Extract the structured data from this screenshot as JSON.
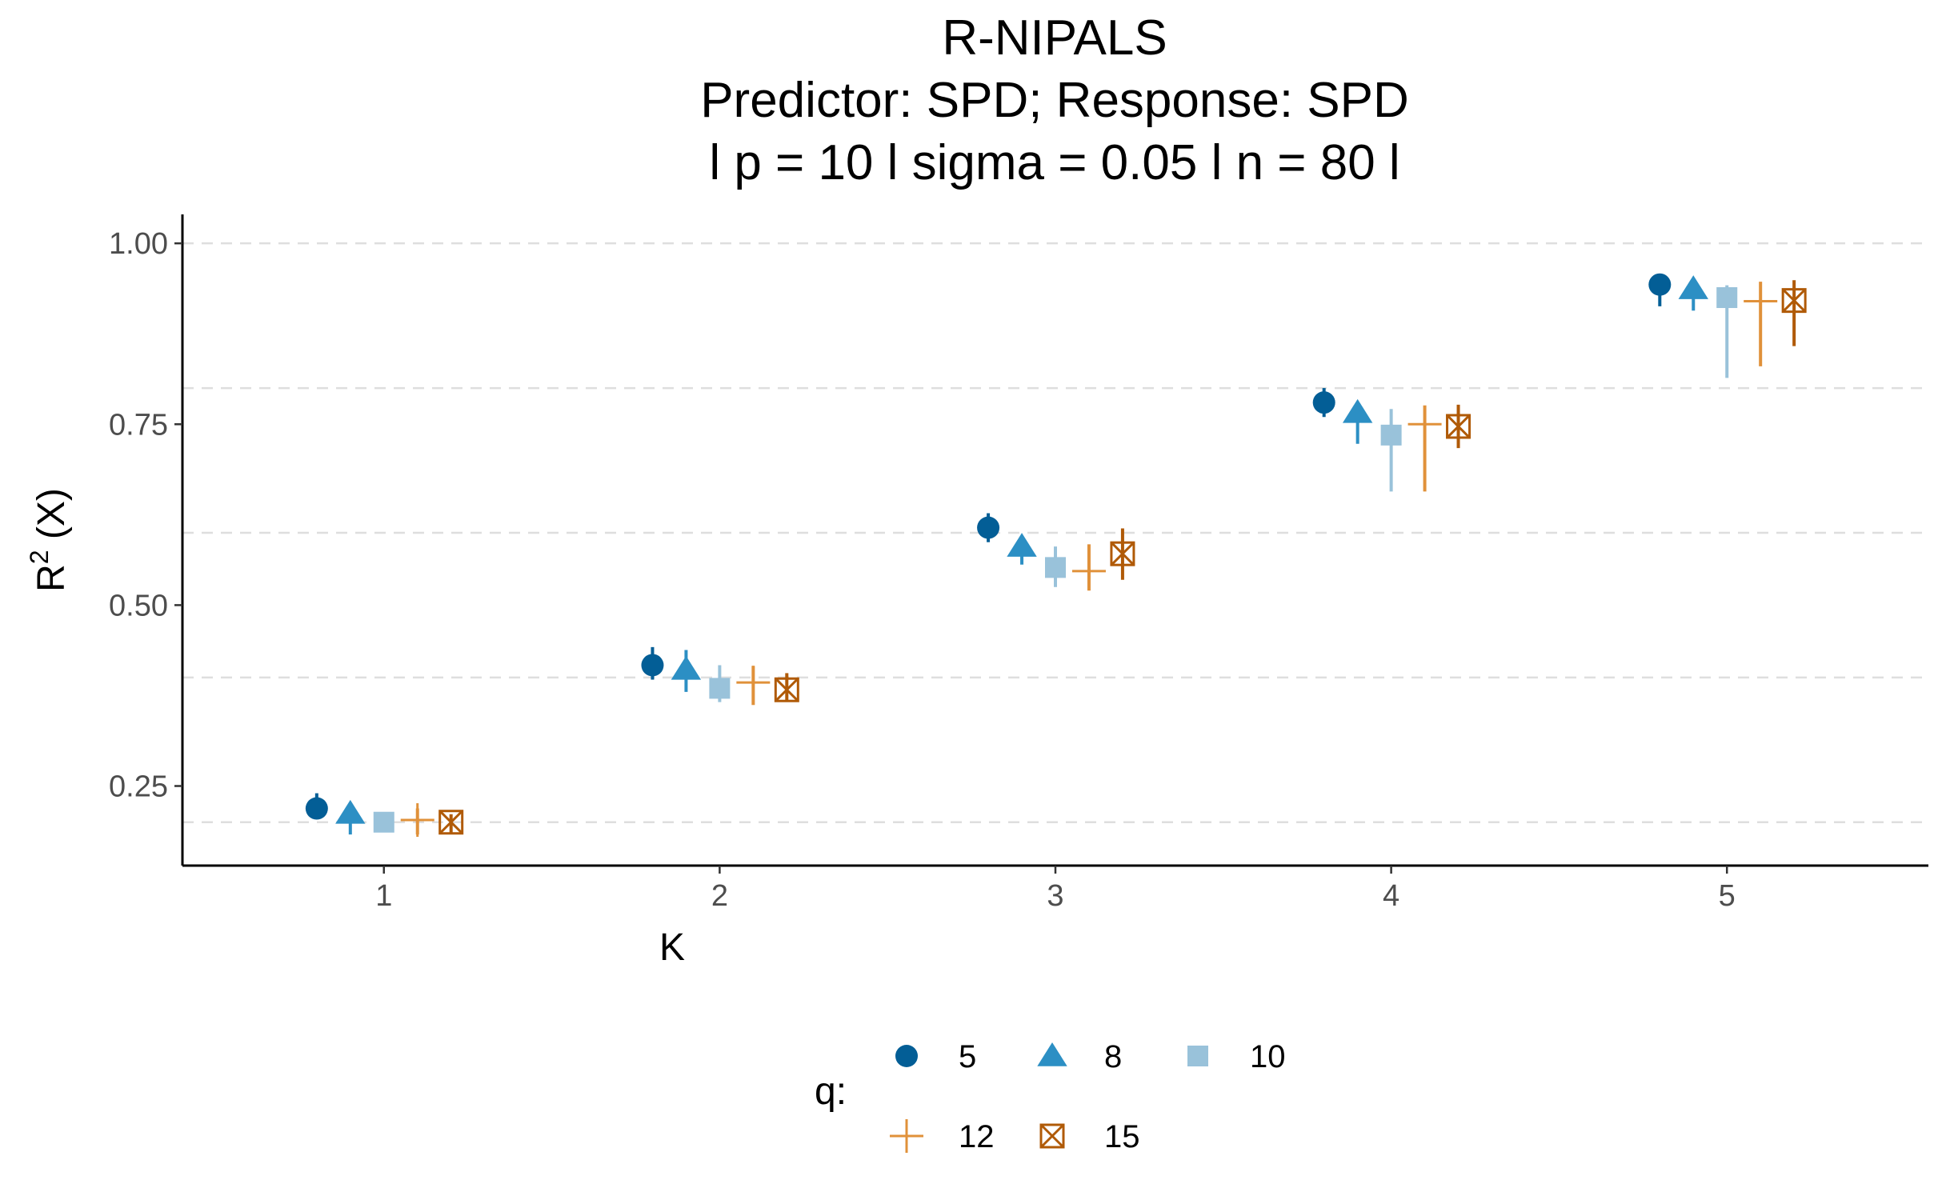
{
  "chart_data": {
    "type": "scatter",
    "title_lines": [
      "R-NIPALS",
      "Predictor: SPD; Response: SPD",
      "l p = 10 l sigma = 0.05 l n = 80 l"
    ],
    "xlabel": "K",
    "ylabel_main": "R",
    "ylabel_sup": "2",
    "ylabel_rest": " (X)",
    "x_ticks": [
      "1",
      "2",
      "3",
      "4",
      "5"
    ],
    "xlim": [
      0.4,
      5.6
    ],
    "y_ticks": [
      "0.25",
      "0.50",
      "0.75",
      "1.00"
    ],
    "ylim": [
      0.14,
      1.04
    ],
    "grid_y": [
      0.2,
      0.4,
      0.6,
      0.8,
      1.0
    ],
    "grid": "horizontal dashed",
    "legend_position": "bottom",
    "legend_title": "q:",
    "series": [
      {
        "name": "5",
        "shape": "circle",
        "color": "#035e96",
        "offset": -0.2,
        "values": [
          0.219,
          0.417,
          0.607,
          0.78,
          0.943
        ],
        "lower": [
          0.205,
          0.397,
          0.587,
          0.76,
          0.913
        ],
        "upper": [
          0.24,
          0.442,
          0.627,
          0.8,
          0.953
        ]
      },
      {
        "name": "8",
        "shape": "triangle",
        "color": "#2c8fc4",
        "offset": -0.1,
        "values": [
          0.212,
          0.411,
          0.581,
          0.766,
          0.937
        ],
        "lower": [
          0.183,
          0.38,
          0.556,
          0.723,
          0.907
        ],
        "upper": [
          0.225,
          0.438,
          0.591,
          0.779,
          0.942
        ]
      },
      {
        "name": "10",
        "shape": "square",
        "color": "#99c2da",
        "offset": 0.0,
        "values": [
          0.2,
          0.385,
          0.552,
          0.735,
          0.925
        ],
        "lower": [
          0.19,
          0.366,
          0.525,
          0.657,
          0.814
        ],
        "upper": [
          0.209,
          0.417,
          0.581,
          0.771,
          0.942
        ]
      },
      {
        "name": "12",
        "shape": "plus",
        "color": "#e0913a",
        "offset": 0.1,
        "values": [
          0.203,
          0.393,
          0.547,
          0.75,
          0.92
        ],
        "lower": [
          0.183,
          0.362,
          0.52,
          0.657,
          0.83
        ],
        "upper": [
          0.219,
          0.416,
          0.584,
          0.776,
          0.947
        ]
      },
      {
        "name": "15",
        "shape": "boxcross",
        "color": "#b05a07",
        "offset": 0.2,
        "values": [
          0.2,
          0.383,
          0.571,
          0.747,
          0.921
        ],
        "lower": [
          0.185,
          0.367,
          0.535,
          0.717,
          0.858
        ],
        "upper": [
          0.211,
          0.406,
          0.606,
          0.777,
          0.949
        ]
      }
    ]
  }
}
